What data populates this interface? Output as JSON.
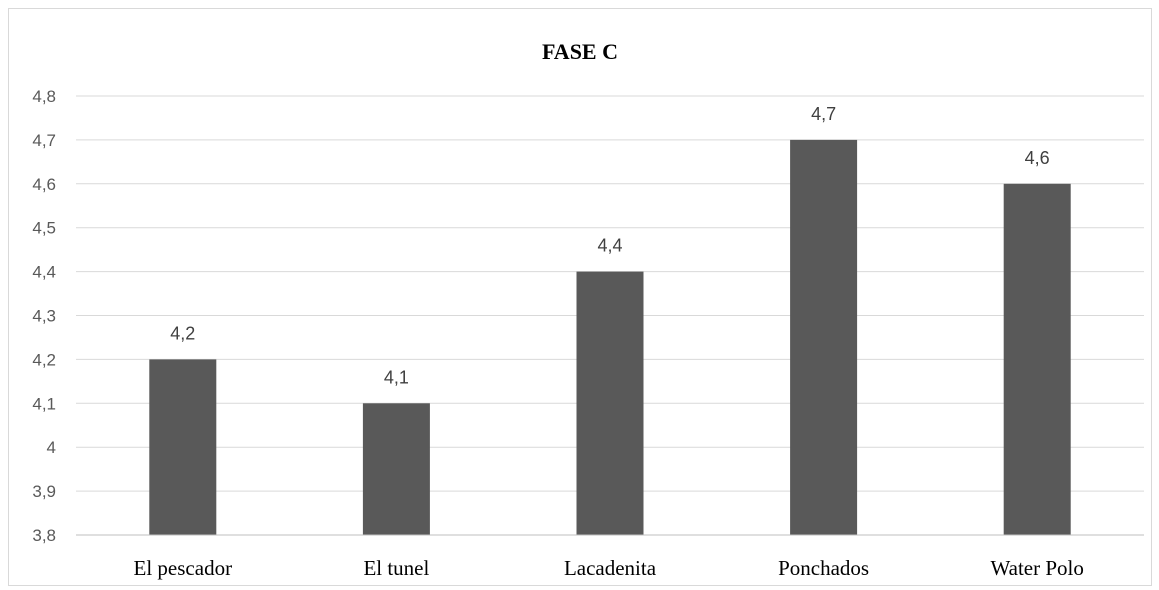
{
  "chart_data": {
    "type": "bar",
    "title": "FASE C",
    "xlabel": "",
    "ylabel": "",
    "categories": [
      "El pescador",
      "El tunel",
      "Lacadenita",
      "Ponchados",
      "Water Polo"
    ],
    "values": [
      4.2,
      4.1,
      4.4,
      4.7,
      4.6
    ],
    "data_labels": [
      "4,2",
      "4,1",
      "4,4",
      "4,7",
      "4,6"
    ],
    "ylim": [
      3.8,
      4.8
    ],
    "yticks": [
      3.8,
      3.9,
      4.0,
      4.1,
      4.2,
      4.3,
      4.4,
      4.5,
      4.6,
      4.7,
      4.8
    ],
    "ytick_labels": [
      "3,8",
      "3,9",
      "4",
      "4,1",
      "4,2",
      "4,3",
      "4,4",
      "4,5",
      "4,6",
      "4,7",
      "4,8"
    ],
    "grid": true,
    "legend": "none",
    "bar_color": "#595959",
    "grid_color": "#d9d9d9"
  }
}
